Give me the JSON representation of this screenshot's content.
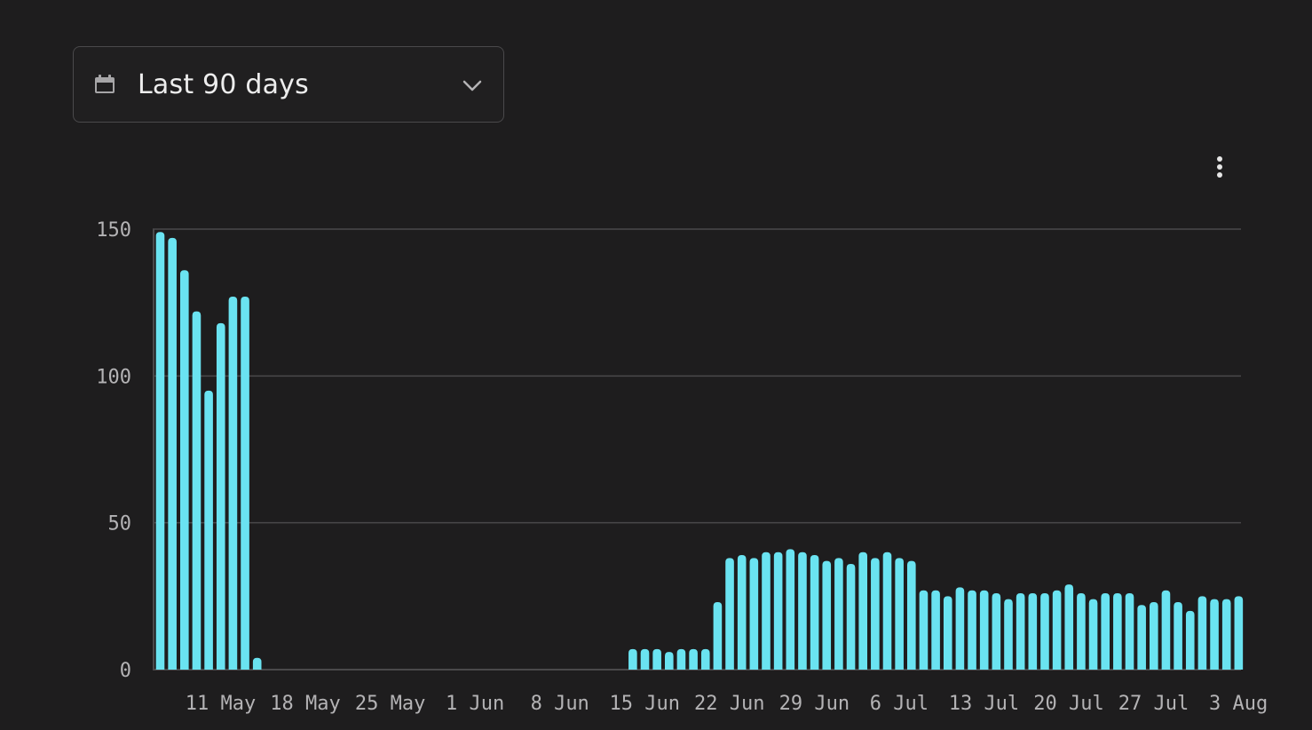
{
  "date_range": {
    "label": "Last 90 days",
    "icon": "calendar-icon",
    "chevron": "chevron-down-icon"
  },
  "menu": {
    "icon": "more-vertical-icon"
  },
  "colors": {
    "background": "#1e1d1e",
    "bar": "#6ae3f1",
    "grid": "#4a494b",
    "tick_text": "#b4b3b5"
  },
  "chart_data": {
    "type": "bar",
    "title": "",
    "xlabel": "",
    "ylabel": "",
    "ylim": [
      0,
      150
    ],
    "yticks": [
      0,
      50,
      100,
      150
    ],
    "grid": true,
    "x_tick_labels": [
      "11 May",
      "18 May",
      "25 May",
      "1 Jun",
      "8 Jun",
      "15 Jun",
      "22 Jun",
      "29 Jun",
      "6 Jul",
      "13 Jul",
      "20 Jul",
      "27 Jul",
      "3 Aug"
    ],
    "x_tick_label_start_index": 0,
    "x_tick_label_step": 7,
    "start_date_label": "11 May",
    "values": [
      149,
      147,
      136,
      122,
      95,
      118,
      127,
      127,
      4,
      0,
      0,
      0,
      0,
      0,
      0,
      0,
      0,
      0,
      0,
      0,
      0,
      0,
      0,
      0,
      0,
      0,
      0,
      0,
      0,
      0,
      0,
      0,
      0,
      0,
      0,
      0,
      0,
      0,
      0,
      7,
      7,
      7,
      6,
      7,
      7,
      7,
      23,
      38,
      39,
      38,
      40,
      40,
      41,
      40,
      39,
      37,
      38,
      36,
      40,
      38,
      40,
      38,
      37,
      27,
      27,
      25,
      28,
      27,
      27,
      26,
      24,
      26,
      26,
      26,
      27,
      29,
      26,
      24,
      26,
      26,
      26,
      22,
      23,
      27,
      23,
      20,
      25,
      24,
      24,
      25
    ]
  }
}
